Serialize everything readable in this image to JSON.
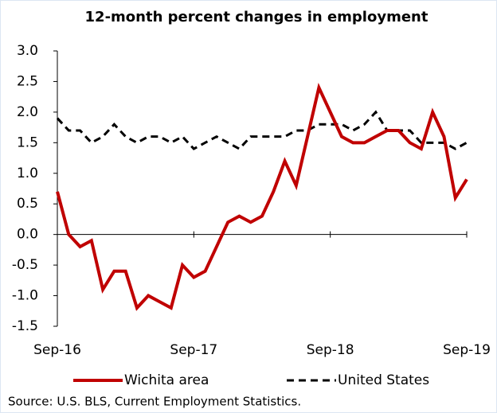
{
  "chart_data": {
    "type": "line",
    "title": "12-month percent changes in employment",
    "categories": [
      "Sep-16",
      null,
      null,
      null,
      null,
      null,
      null,
      null,
      null,
      null,
      null,
      null,
      "Sep-17",
      null,
      null,
      null,
      null,
      null,
      null,
      null,
      null,
      null,
      null,
      null,
      "Sep-18",
      null,
      null,
      null,
      null,
      null,
      null,
      null,
      null,
      null,
      null,
      null,
      "Sep-19"
    ],
    "series": [
      {
        "name": "Wichita area",
        "color": "#c00000",
        "dash": "solid",
        "values": [
          0.7,
          0.0,
          -0.2,
          -0.1,
          -0.9,
          -0.6,
          -0.6,
          -1.2,
          -1.0,
          -1.1,
          -1.2,
          -0.5,
          -0.7,
          -0.6,
          -0.2,
          0.2,
          0.3,
          0.2,
          0.3,
          0.7,
          1.2,
          0.8,
          1.6,
          2.4,
          2.0,
          1.6,
          1.5,
          1.5,
          1.6,
          1.7,
          1.7,
          1.5,
          1.4,
          2.0,
          1.6,
          0.6,
          0.9
        ]
      },
      {
        "name": "United States",
        "color": "#000000",
        "dash": "dashed",
        "values": [
          1.9,
          1.7,
          1.7,
          1.5,
          1.6,
          1.8,
          1.6,
          1.5,
          1.6,
          1.6,
          1.5,
          1.6,
          1.4,
          1.5,
          1.6,
          1.5,
          1.4,
          1.6,
          1.6,
          1.6,
          1.6,
          1.7,
          1.7,
          1.8,
          1.8,
          1.8,
          1.7,
          1.8,
          2.0,
          1.7,
          1.7,
          1.7,
          1.5,
          1.5,
          1.5,
          1.4,
          1.5
        ]
      }
    ],
    "ylim": [
      -1.5,
      3
    ],
    "yticks": [
      -1.5,
      {
        "value": -1,
        "label": "-1.0"
      },
      -0.5,
      {
        "value": 0,
        "label": "0.0"
      },
      0.5,
      {
        "value": 1,
        "label": "1.0"
      },
      1.5,
      {
        "value": 2,
        "label": "2.0"
      },
      2.5,
      {
        "value": 3,
        "label": "3.0"
      }
    ],
    "legend": "bottom",
    "source": "Source: U.S. BLS, Current Employment Statistics."
  }
}
